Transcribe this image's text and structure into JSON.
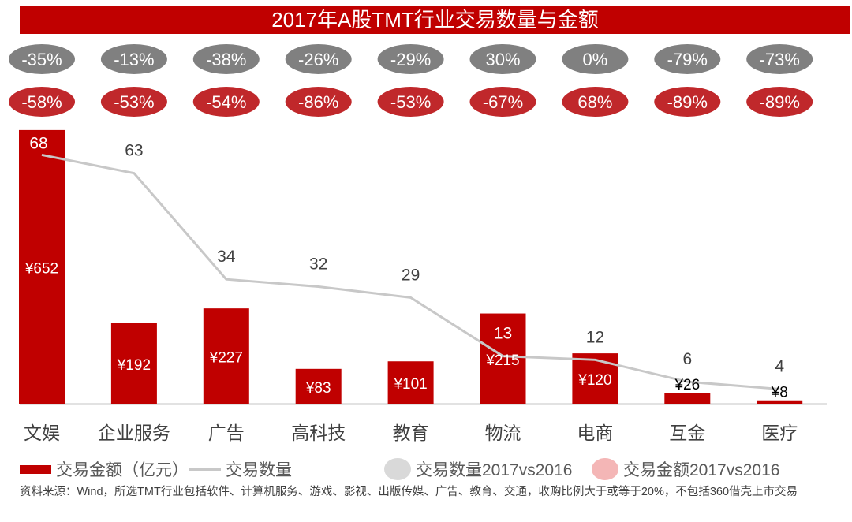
{
  "chart_data": {
    "type": "bar",
    "title": "2017年A股TMT行业交易数量与金额",
    "categories": [
      "文娱",
      "企业服务",
      "广告",
      "高科技",
      "教育",
      "物流",
      "电商",
      "互金",
      "医疗"
    ],
    "series": [
      {
        "name": "交易金额（亿元）",
        "type": "bar",
        "color": "#c00000",
        "values": [
          652,
          192,
          227,
          83,
          101,
          215,
          120,
          26,
          8
        ],
        "labels": [
          "¥652",
          "¥192",
          "¥227",
          "¥83",
          "¥101",
          "¥215",
          "¥120",
          "¥26",
          "¥8"
        ],
        "ylim": [
          0,
          680
        ]
      },
      {
        "name": "交易数量",
        "type": "line",
        "color": "#c8c8c8",
        "values": [
          68,
          63,
          34,
          32,
          29,
          13,
          12,
          6,
          4
        ],
        "ylim": [
          0,
          78
        ]
      }
    ],
    "growth_rows": [
      {
        "name": "交易数量2017vs2016",
        "color": "#808080",
        "values": [
          "-35%",
          "-13%",
          "-38%",
          "-26%",
          "-29%",
          "30%",
          "0%",
          "-79%",
          "-73%"
        ]
      },
      {
        "name": "交易金额2017vs2016",
        "color": "#c0282b",
        "values": [
          "-58%",
          "-53%",
          "-54%",
          "-86%",
          "-53%",
          "-67%",
          "68%",
          "-89%",
          "-89%"
        ]
      }
    ],
    "legend": {
      "bar": "交易金额（亿元）",
      "line": "交易数量",
      "count_growth": "交易数量2017vs2016",
      "amount_growth": "交易金额2017vs2016",
      "count_growth_color": "#d9d9d9",
      "amount_growth_color": "#f4b6b6",
      "placement": "bottom"
    },
    "source": "资料来源：Wind，所选TMT行业包括软件、计算机服务、游戏、影视、出版传媒、广告、教育、交通，收购比例大于或等于20%，不包括360借壳上市交易",
    "grid": false
  }
}
